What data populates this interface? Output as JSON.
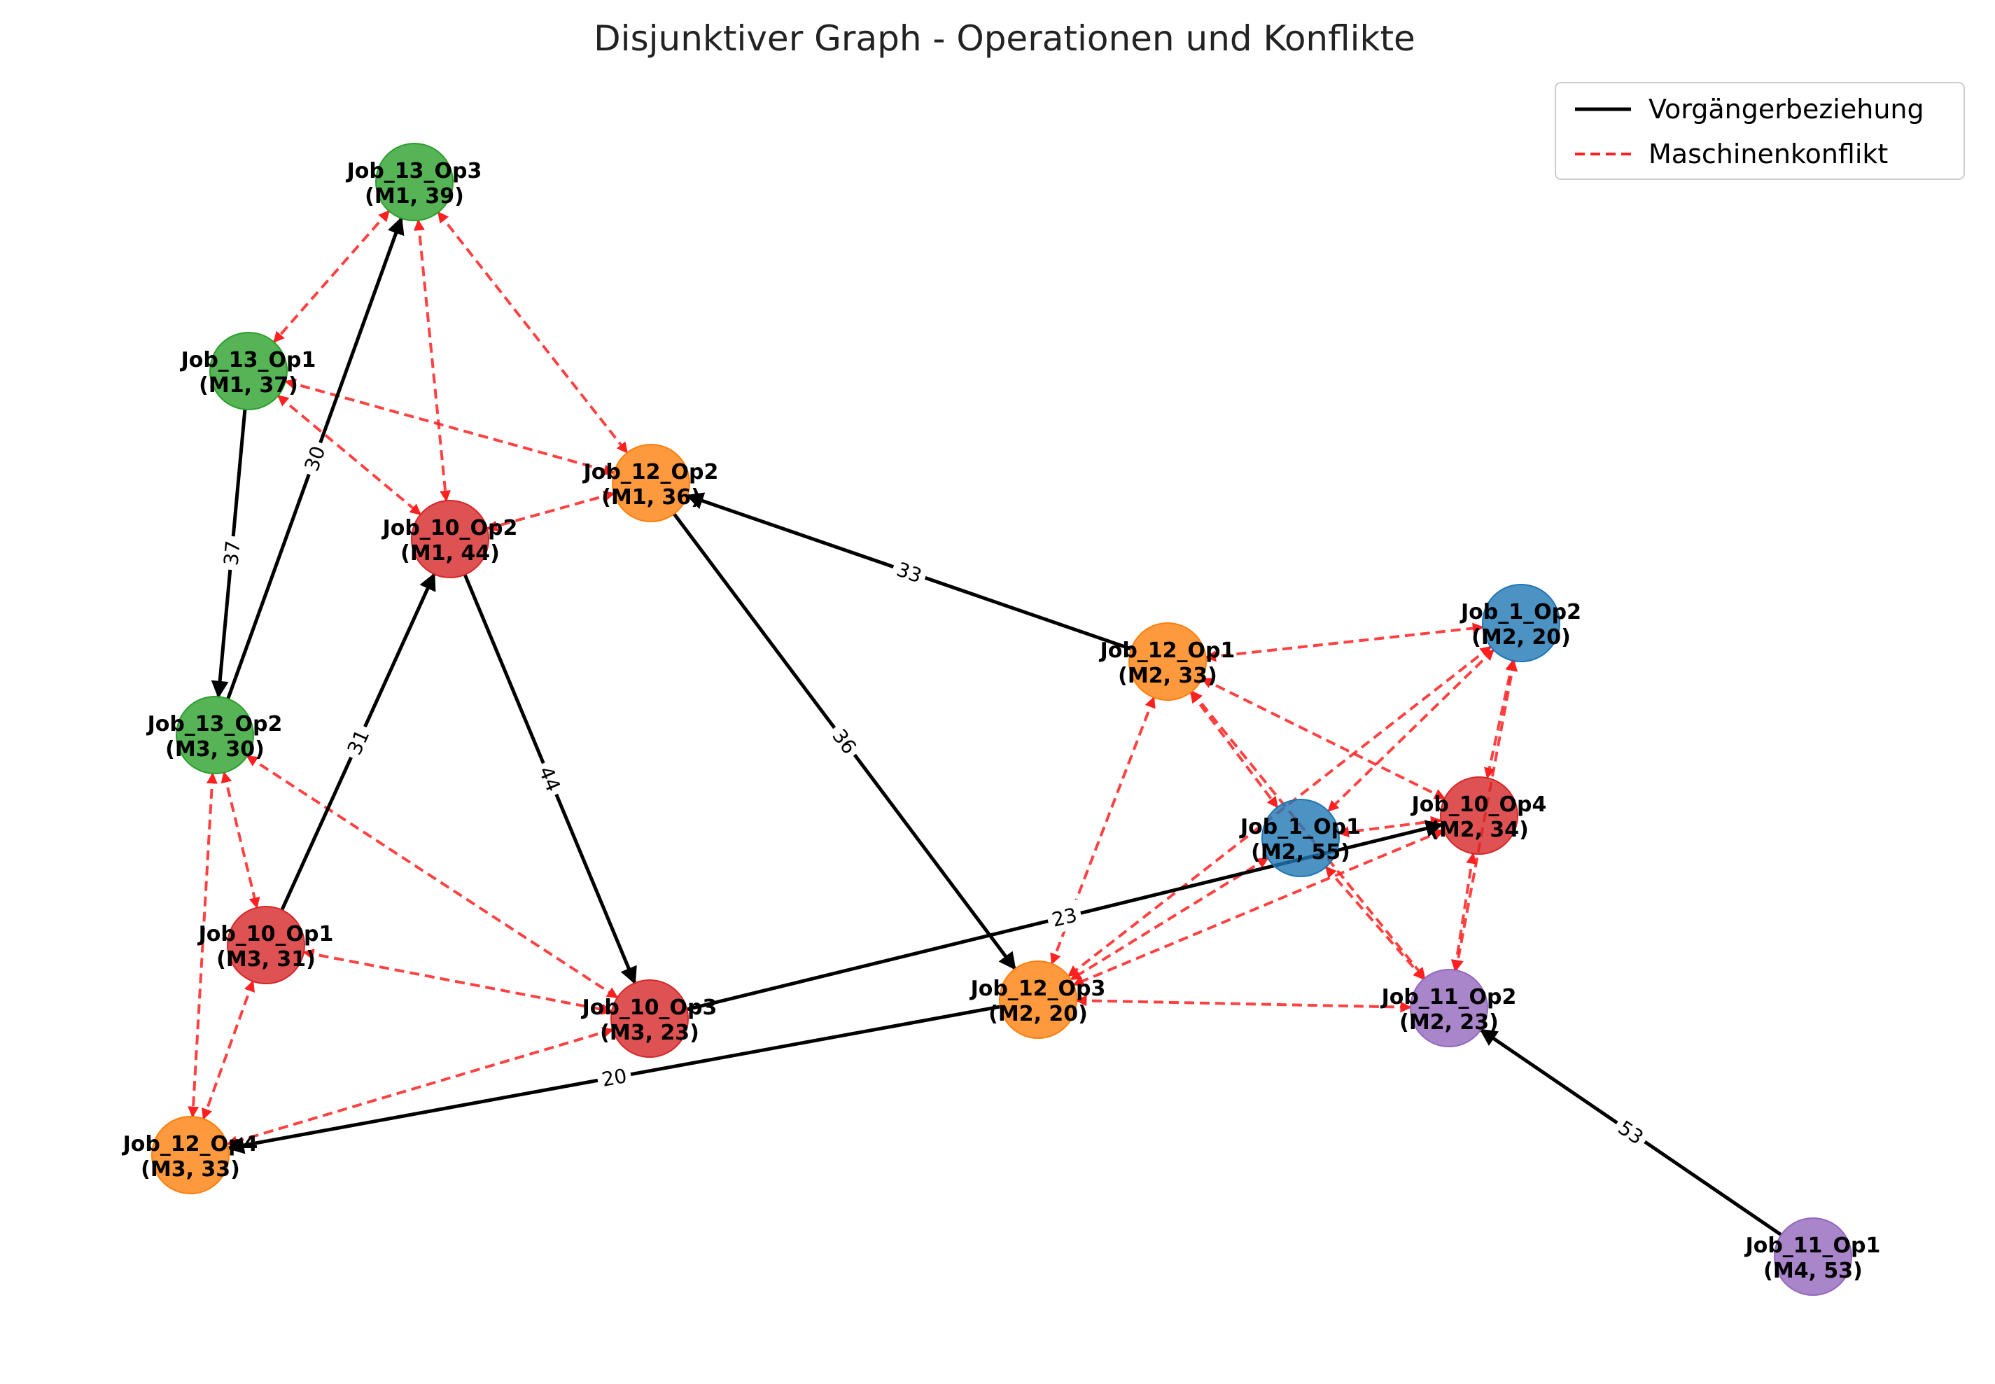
{
  "title": "Disjunktiver Graph - Operationen und Konflikte",
  "legend": {
    "precedence": "Vorgängerbeziehung",
    "conflict": "Maschinenkonflikt"
  },
  "colors": {
    "precedence": "#000000",
    "conflict": "#ff2020",
    "job_1": "#1f77b4",
    "job_10": "#d62728",
    "job_11": "#9467bd",
    "job_12": "#ff7f0e",
    "job_13": "#2ca02c"
  },
  "nodes": [
    {
      "id": "Job_13_Op3",
      "job": "job_13",
      "line1": "Job_13_Op3",
      "line2": "(M1, 39)"
    },
    {
      "id": "Job_13_Op1",
      "job": "job_13",
      "line1": "Job_13_Op1",
      "line2": "(M1, 37)"
    },
    {
      "id": "Job_12_Op2",
      "job": "job_12",
      "line1": "Job_12_Op2",
      "line2": "(M1, 36)"
    },
    {
      "id": "Job_10_Op2",
      "job": "job_10",
      "line1": "Job_10_Op2",
      "line2": "(M1, 44)"
    },
    {
      "id": "Job_13_Op2",
      "job": "job_13",
      "line1": "Job_13_Op2",
      "line2": "(M3, 30)"
    },
    {
      "id": "Job_10_Op1",
      "job": "job_10",
      "line1": "Job_10_Op1",
      "line2": "(M3, 31)"
    },
    {
      "id": "Job_10_Op3",
      "job": "job_10",
      "line1": "Job_10_Op3",
      "line2": "(M3, 23)"
    },
    {
      "id": "Job_12_Op4",
      "job": "job_12",
      "line1": "Job_12_Op4",
      "line2": "(M3, 33)"
    },
    {
      "id": "Job_12_Op1",
      "job": "job_12",
      "line1": "Job_12_Op1",
      "line2": "(M2, 33)"
    },
    {
      "id": "Job_1_Op2",
      "job": "job_1",
      "line1": "Job_1_Op2",
      "line2": "(M2, 20)"
    },
    {
      "id": "Job_1_Op1",
      "job": "job_1",
      "line1": "Job_1_Op1",
      "line2": "(M2, 55)"
    },
    {
      "id": "Job_10_Op4",
      "job": "job_10",
      "line1": "Job_10_Op4",
      "line2": "(M2, 34)"
    },
    {
      "id": "Job_12_Op3",
      "job": "job_12",
      "line1": "Job_12_Op3",
      "line2": "(M2, 20)"
    },
    {
      "id": "Job_11_Op2",
      "job": "job_11",
      "line1": "Job_11_Op2",
      "line2": "(M2, 23)"
    },
    {
      "id": "Job_11_Op1",
      "job": "job_11",
      "line1": "Job_11_Op1",
      "line2": "(M4, 53)"
    }
  ],
  "precedence_edges": [
    {
      "from": "Job_13_Op1",
      "to": "Job_13_Op2",
      "label": "37"
    },
    {
      "from": "Job_13_Op2",
      "to": "Job_13_Op3",
      "label": "30"
    },
    {
      "from": "Job_10_Op1",
      "to": "Job_10_Op2",
      "label": "31"
    },
    {
      "from": "Job_10_Op2",
      "to": "Job_10_Op3",
      "label": "44"
    },
    {
      "from": "Job_10_Op3",
      "to": "Job_10_Op4",
      "label": "23"
    },
    {
      "from": "Job_12_Op1",
      "to": "Job_12_Op2",
      "label": "33"
    },
    {
      "from": "Job_12_Op2",
      "to": "Job_12_Op3",
      "label": "36"
    },
    {
      "from": "Job_12_Op3",
      "to": "Job_12_Op4",
      "label": "20"
    },
    {
      "from": "Job_11_Op1",
      "to": "Job_11_Op2",
      "label": "53"
    }
  ],
  "conflict_edges": [
    [
      "Job_13_Op3",
      "Job_13_Op1"
    ],
    [
      "Job_13_Op3",
      "Job_12_Op2"
    ],
    [
      "Job_13_Op3",
      "Job_10_Op2"
    ],
    [
      "Job_13_Op1",
      "Job_12_Op2"
    ],
    [
      "Job_13_Op1",
      "Job_10_Op2"
    ],
    [
      "Job_12_Op2",
      "Job_10_Op2"
    ],
    [
      "Job_13_Op2",
      "Job_10_Op1"
    ],
    [
      "Job_13_Op2",
      "Job_10_Op3"
    ],
    [
      "Job_13_Op2",
      "Job_12_Op4"
    ],
    [
      "Job_10_Op1",
      "Job_10_Op3"
    ],
    [
      "Job_10_Op1",
      "Job_12_Op4"
    ],
    [
      "Job_10_Op3",
      "Job_12_Op4"
    ],
    [
      "Job_12_Op1",
      "Job_1_Op2"
    ],
    [
      "Job_12_Op1",
      "Job_1_Op1"
    ],
    [
      "Job_12_Op1",
      "Job_10_Op4"
    ],
    [
      "Job_12_Op1",
      "Job_12_Op3"
    ],
    [
      "Job_12_Op1",
      "Job_11_Op2"
    ],
    [
      "Job_1_Op2",
      "Job_1_Op1"
    ],
    [
      "Job_1_Op2",
      "Job_10_Op4"
    ],
    [
      "Job_1_Op2",
      "Job_12_Op3"
    ],
    [
      "Job_1_Op2",
      "Job_11_Op2"
    ],
    [
      "Job_1_Op1",
      "Job_10_Op4"
    ],
    [
      "Job_1_Op1",
      "Job_12_Op3"
    ],
    [
      "Job_1_Op1",
      "Job_11_Op2"
    ],
    [
      "Job_10_Op4",
      "Job_12_Op3"
    ],
    [
      "Job_10_Op4",
      "Job_11_Op2"
    ],
    [
      "Job_12_Op3",
      "Job_11_Op2"
    ]
  ]
}
